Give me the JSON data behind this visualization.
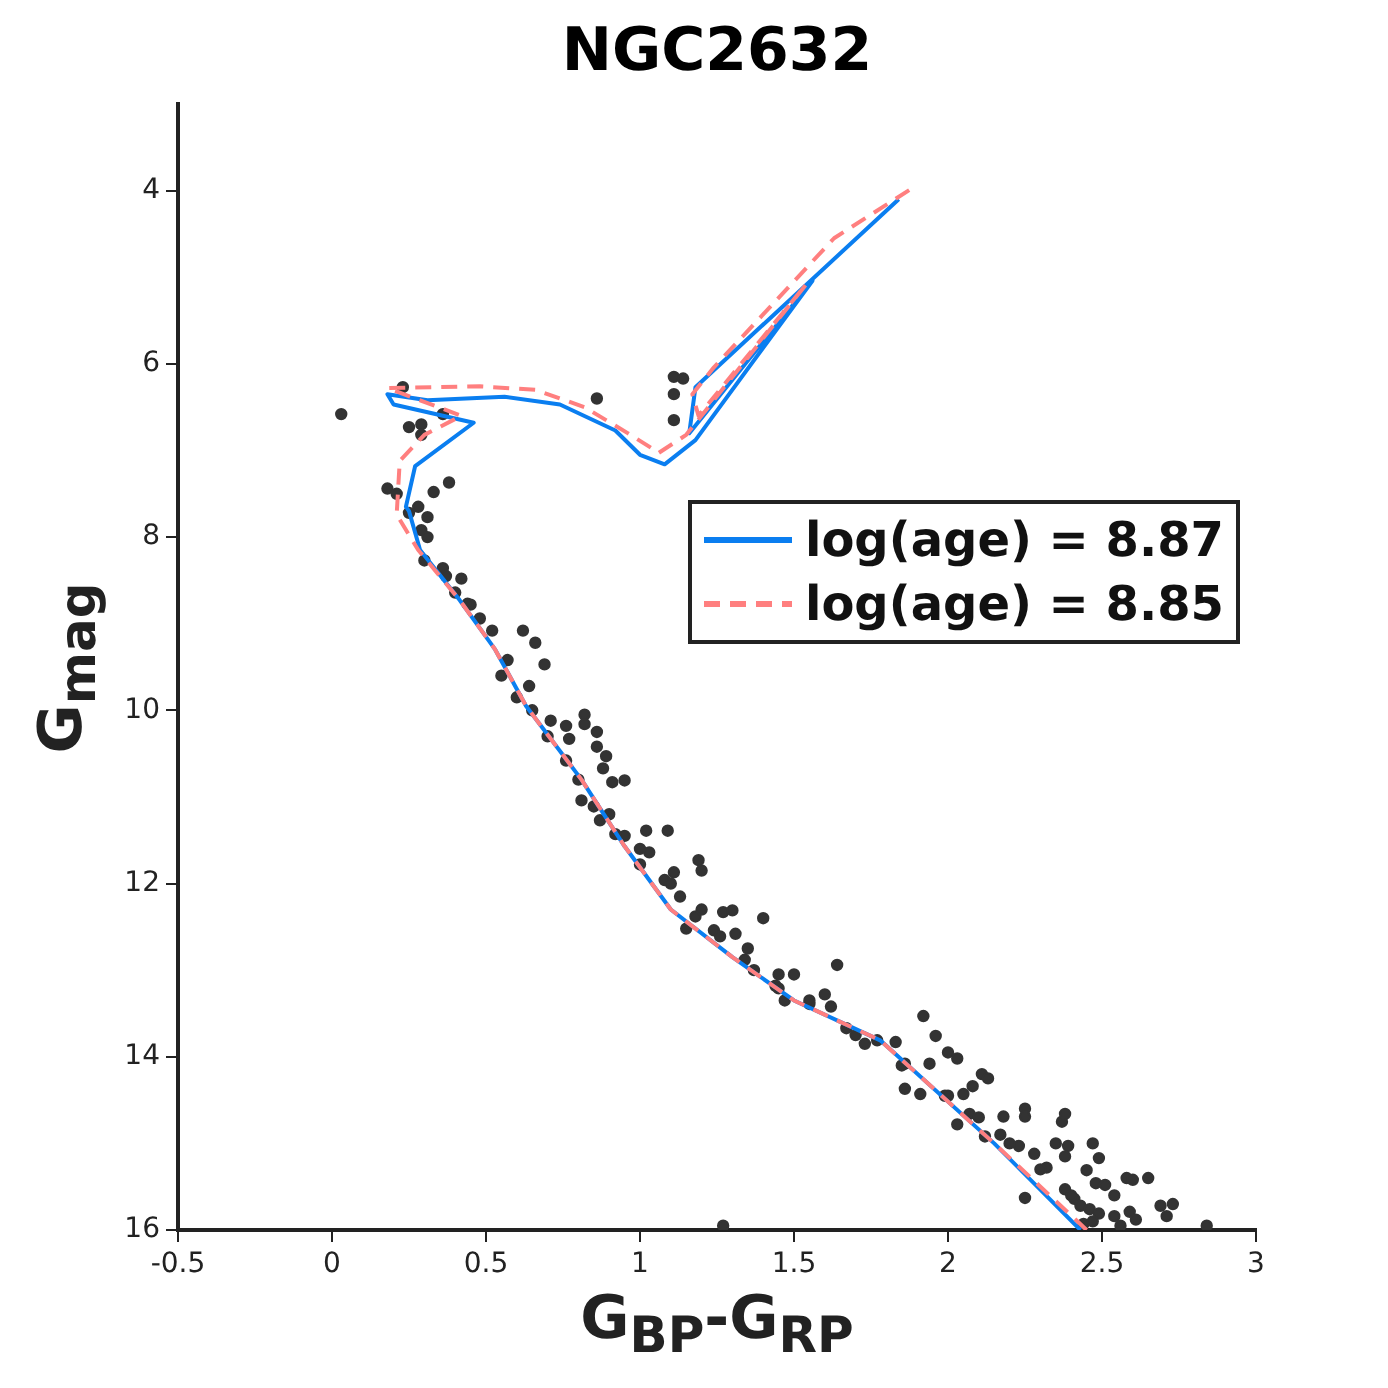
{
  "chart_data": {
    "type": "scatter",
    "title": "NGC2632",
    "xlabel": "G$_{BP}$-G$_{RP}$",
    "ylabel": "G$_{mag}$",
    "xlim": [
      -0.5,
      3
    ],
    "xticks": [
      -0.5,
      0,
      0.5,
      1,
      1.5,
      2,
      2.5,
      3
    ],
    "ylim": [
      16,
      3
    ],
    "yticks": [
      4,
      6,
      8,
      10,
      12,
      14,
      16
    ],
    "grid": false,
    "legend": "right",
    "series": [
      {
        "color": "#333333",
        "marker": "circle",
        "x": [
          0.03,
          0.23,
          0.25,
          0.29,
          0.29,
          0.36,
          0.86,
          1.11,
          1.14,
          1.11,
          1.11,
          0.18,
          0.21,
          0.33,
          0.38,
          0.28,
          0.31,
          0.25,
          0.29,
          0.31,
          0.3,
          0.36,
          0.37,
          0.42,
          0.4,
          0.45,
          0.48,
          0.52,
          0.62,
          0.44,
          0.66,
          0.69,
          0.57,
          0.64,
          0.65,
          0.71,
          0.76,
          0.82,
          0.82,
          0.77,
          0.86,
          0.86,
          0.89,
          0.88,
          0.91,
          0.95,
          0.76,
          0.85,
          0.87,
          0.95,
          1.02,
          1.09,
          1.03,
          1.0,
          1.11,
          1.19,
          1.2,
          1.08,
          1.13,
          1.27,
          1.3,
          1.18,
          1.15,
          1.24,
          1.26,
          1.31,
          1.4,
          1.37,
          1.34,
          1.5,
          1.64,
          1.44,
          1.6,
          1.62,
          1.47,
          0.81,
          0.92,
          1.45,
          1.55,
          1.67,
          1.77,
          1.83,
          1.73,
          1.86,
          1.92,
          1.96,
          1.94,
          2.0,
          2.03,
          1.86,
          1.91,
          1.99,
          2.05,
          2.08,
          2.11,
          2.13,
          2.07,
          2.03,
          2.12,
          2.18,
          2.17,
          2.25,
          2.25,
          2.23,
          2.28,
          2.32,
          2.25,
          2.35,
          2.37,
          2.38,
          2.39,
          2.38,
          2.45,
          2.47,
          2.49,
          2.48,
          2.51,
          2.54,
          2.58,
          2.6,
          2.65,
          2.38,
          2.41,
          2.43,
          2.46,
          2.49,
          2.54,
          2.59,
          2.61,
          2.69,
          2.71,
          2.73,
          2.84,
          2.56,
          2.44,
          1.27,
          0.55,
          0.6,
          0.7,
          0.8,
          0.9,
          1.0,
          1.1,
          1.2,
          1.35,
          1.45,
          1.55,
          1.7,
          1.85,
          2.0,
          2.1,
          2.2,
          2.3,
          2.4,
          2.47
        ],
        "values": [
          6.58,
          6.27,
          6.73,
          6.7,
          6.82,
          6.58,
          6.4,
          6.15,
          6.17,
          6.35,
          6.65,
          7.44,
          7.5,
          7.48,
          7.37,
          7.65,
          7.77,
          7.72,
          7.92,
          8.0,
          8.27,
          8.36,
          8.45,
          8.48,
          8.64,
          8.78,
          8.94,
          9.08,
          9.08,
          8.77,
          9.22,
          9.47,
          9.42,
          9.72,
          10.0,
          10.12,
          10.18,
          10.05,
          10.16,
          10.33,
          10.25,
          10.42,
          10.53,
          10.67,
          10.83,
          10.81,
          10.58,
          11.11,
          11.27,
          11.45,
          11.39,
          11.39,
          11.64,
          11.78,
          11.87,
          11.73,
          11.85,
          11.96,
          12.15,
          12.33,
          12.31,
          12.38,
          12.52,
          12.54,
          12.61,
          12.58,
          12.4,
          13.0,
          12.88,
          13.05,
          12.94,
          13.18,
          13.28,
          13.42,
          13.35,
          11.04,
          11.43,
          13.21,
          13.39,
          13.67,
          13.81,
          13.83,
          13.85,
          14.08,
          13.53,
          13.76,
          14.08,
          13.95,
          14.02,
          14.37,
          14.43,
          14.45,
          14.43,
          14.34,
          14.2,
          14.25,
          14.66,
          14.78,
          14.92,
          14.69,
          14.9,
          14.6,
          14.69,
          15.03,
          15.12,
          15.28,
          15.63,
          15.0,
          14.75,
          14.66,
          15.03,
          15.15,
          15.31,
          15.0,
          15.17,
          15.46,
          15.48,
          15.6,
          15.4,
          15.42,
          15.4,
          15.53,
          15.64,
          15.72,
          15.76,
          15.81,
          15.84,
          15.79,
          15.88,
          15.72,
          15.84,
          15.7,
          15.95,
          15.95,
          15.93,
          15.95,
          9.6,
          9.85,
          10.3,
          10.8,
          11.2,
          11.6,
          12.0,
          12.3,
          12.75,
          13.05,
          13.35,
          13.75,
          14.1,
          14.45,
          14.7,
          15.0,
          15.3,
          15.6,
          15.9
        ]
      },
      {
        "type": "line",
        "name": "log(age) = 8.87",
        "color": "#0a7ef0",
        "marker": "none",
        "line_style": "solid",
        "x": [
          2.43,
          2.15,
          1.78,
          1.5,
          1.3,
          1.1,
          0.95,
          0.81,
          0.63,
          0.53,
          0.415,
          0.286,
          0.25,
          0.24,
          0.27,
          0.46,
          0.2,
          0.18,
          0.31,
          0.56,
          0.74,
          0.92,
          1.0,
          1.08,
          1.18,
          1.56,
          1.16,
          1.18,
          1.84
        ],
        "values": [
          16,
          15.0,
          13.81,
          13.35,
          12.85,
          12.3,
          11.57,
          10.8,
          9.95,
          9.3,
          8.73,
          8.15,
          7.7,
          7.65,
          7.18,
          6.68,
          6.47,
          6.35,
          6.42,
          6.38,
          6.47,
          6.77,
          7.05,
          7.16,
          6.88,
          5.04,
          6.8,
          6.27,
          4.1
        ]
      },
      {
        "type": "line",
        "name": "log(age) = 8.85",
        "color": "#ff7f7f",
        "marker": "none",
        "line_style": "dashed",
        "x": [
          2.45,
          2.15,
          1.78,
          1.5,
          1.3,
          1.1,
          0.95,
          0.81,
          0.63,
          0.53,
          0.415,
          0.28,
          0.21,
          0.22,
          0.3,
          0.42,
          0.18,
          0.48,
          0.66,
          0.82,
          0.96,
          1.05,
          1.06,
          1.15,
          1.54,
          1.19,
          1.17,
          1.24,
          1.63,
          1.88
        ],
        "values": [
          16,
          15.0,
          13.81,
          13.35,
          12.85,
          12.3,
          11.57,
          10.8,
          9.95,
          9.3,
          8.73,
          8.15,
          7.74,
          7.12,
          6.82,
          6.6,
          6.28,
          6.26,
          6.3,
          6.5,
          6.8,
          7.0,
          7.03,
          6.82,
          5.08,
          6.6,
          6.35,
          6.04,
          4.55,
          3.98
        ]
      }
    ]
  }
}
